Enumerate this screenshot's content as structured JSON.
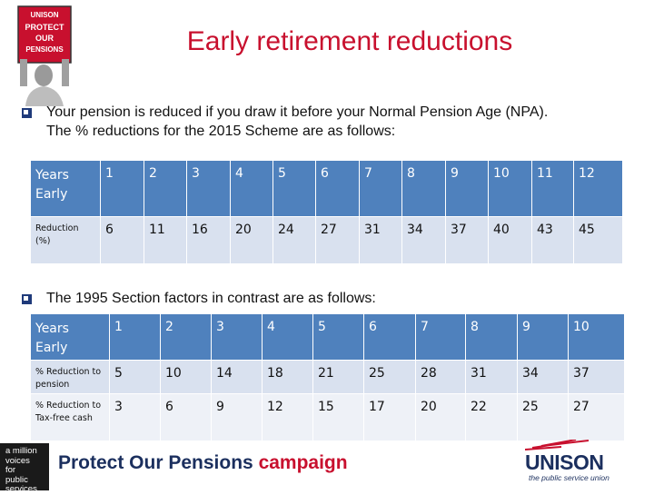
{
  "slide": {
    "title": "Early retirement reductions",
    "bullet1_line1": "Your pension is reduced if you draw it before your Normal Pension Age (NPA).",
    "bullet1_line2": "The % reductions for the 2015 Scheme are as follows:",
    "bullet2": "The 1995 Section factors in contrast are as follows:"
  },
  "photo_sign": {
    "line1": "UNISON",
    "line2": "PROTECT",
    "line3": "OUR",
    "line4": "PENSIONS"
  },
  "table2015": {
    "header": {
      "label_line1": "Years",
      "label_line2": "Early",
      "cells": [
        "1",
        "2",
        "3",
        "4",
        "5",
        "6",
        "7",
        "8",
        "9",
        "10",
        "11",
        "12"
      ]
    },
    "row": {
      "label_line1": "Reduction",
      "label_line2": "(%)",
      "cells": [
        "6",
        "11",
        "16",
        "20",
        "24",
        "27",
        "31",
        "34",
        "37",
        "40",
        "43",
        "45"
      ]
    }
  },
  "table1995": {
    "header": {
      "label_line1": "Years",
      "label_line2": "Early",
      "cells": [
        "1",
        "2",
        "3",
        "4",
        "5",
        "6",
        "7",
        "8",
        "9",
        "10"
      ]
    },
    "row1": {
      "label_line1": "% Reduction to",
      "label_line2": "pension",
      "cells": [
        "5",
        "10",
        "14",
        "18",
        "21",
        "25",
        "28",
        "31",
        "34",
        "37"
      ]
    },
    "row2": {
      "label_line1": "% Reduction to",
      "label_line2": "Tax-free cash",
      "cells": [
        "3",
        "6",
        "9",
        "12",
        "15",
        "17",
        "20",
        "22",
        "25",
        "27"
      ]
    }
  },
  "footer": {
    "badge": [
      "a million",
      "voices",
      "for",
      "public",
      "services"
    ],
    "campaign_main": "Protect Our Pensions ",
    "campaign_accent": "campaign",
    "unison": "UNISON",
    "tagline": "the public service union"
  },
  "colors": {
    "title": "#c8102e",
    "header_fill": "#4f81bd",
    "row_fill_a": "#d9e1ef",
    "row_fill_b": "#eef1f7",
    "bullet": "#1f3a7a",
    "brand_navy": "#1b2f5e"
  },
  "icons": {
    "bullet": "hollow-square-bullet-icon"
  }
}
